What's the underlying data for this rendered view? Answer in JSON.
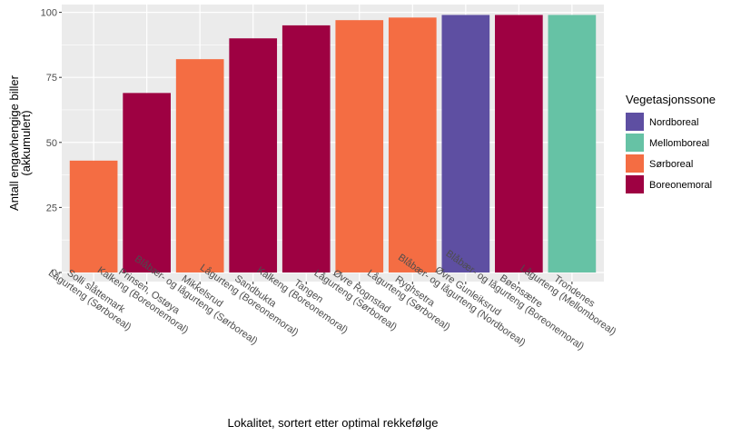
{
  "chart_data": {
    "type": "bar",
    "title": "",
    "xlabel": "Lokalitet, sortert etter optimal rekkefølge",
    "ylabel_lines": [
      "Antall engavhengige biller",
      "(akkumulert)"
    ],
    "ylim": [
      0,
      100
    ],
    "yticks": [
      0,
      25,
      50,
      75,
      100
    ],
    "grid": true,
    "categories": [
      [
        "Solli slåttemark",
        "Lågurteng (Sørboreal)"
      ],
      [
        "Prinsen, Ostøya",
        "Kalkeng (Boreonemoral)"
      ],
      [
        "Mikkelsrud",
        "Blåbær- og lågurteng (Sørboreal)"
      ],
      [
        "Sandbukta",
        "Lågurteng (Boreonemoral)"
      ],
      [
        "Tangen",
        "Kalkeng (Boreonemoral)"
      ],
      [
        "Øvre Rognstad",
        "Lågurteng (Sørboreal)"
      ],
      [
        "Ryghsetra",
        "Lågurteng (Sørboreal)"
      ],
      [
        "Øvre Gunleiksrud",
        "Blåbær- og lågurteng (Nordboreal)"
      ],
      [
        "Bøensætre",
        "Blåbær- og lågurteng (Boreonemoral)"
      ],
      [
        "Trondenes",
        "Lågurteng (Mellomboreal)"
      ]
    ],
    "values": [
      43,
      69,
      82,
      90,
      95,
      97,
      98,
      99,
      99,
      99
    ],
    "zones": [
      "Sørboreal",
      "Boreonemoral",
      "Sørboreal",
      "Boreonemoral",
      "Boreonemoral",
      "Sørboreal",
      "Sørboreal",
      "Nordboreal",
      "Boreonemoral",
      "Mellomboreal"
    ],
    "legend": {
      "title": "Vegetasjonssone",
      "position": "right",
      "entries": [
        {
          "name": "Nordboreal",
          "color": "#5e4fa2"
        },
        {
          "name": "Mellomboreal",
          "color": "#66c2a5"
        },
        {
          "name": "Sørboreal",
          "color": "#f46d43"
        },
        {
          "name": "Boreonemoral",
          "color": "#9e0142"
        }
      ]
    }
  }
}
